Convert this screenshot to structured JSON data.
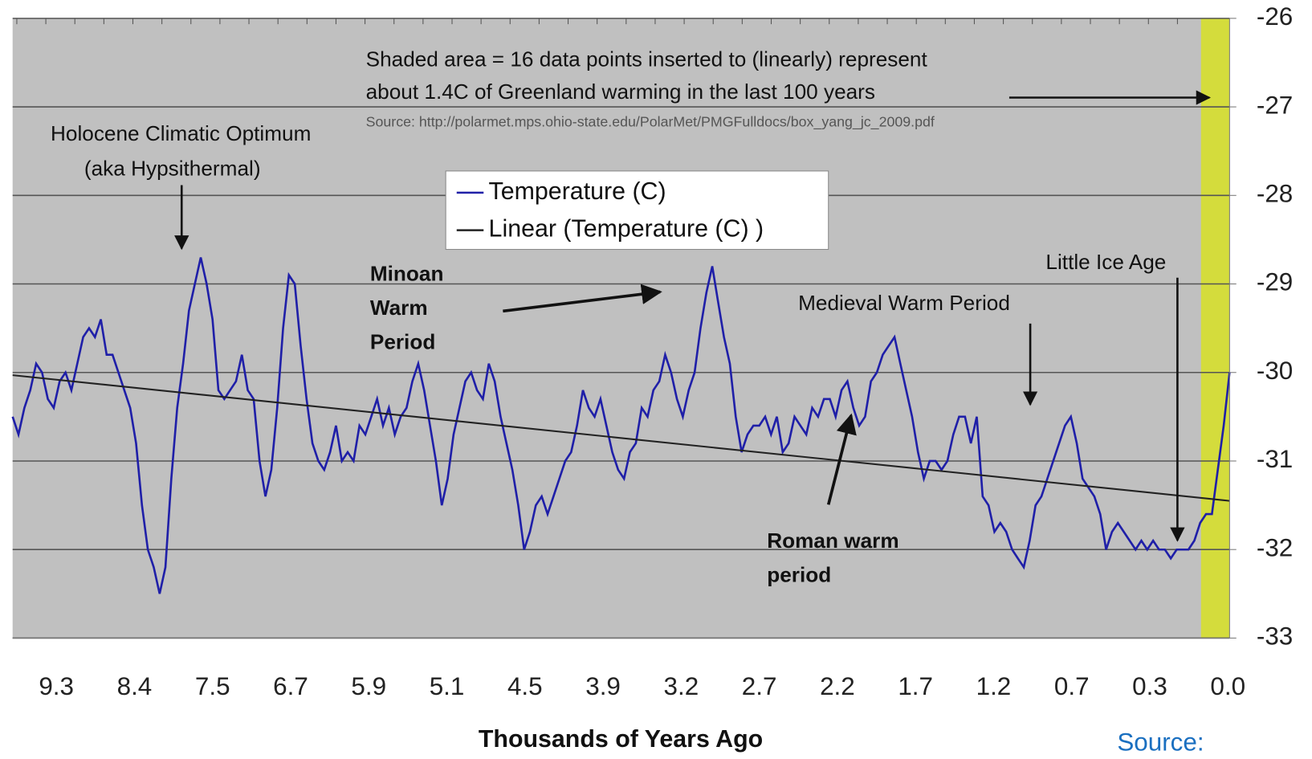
{
  "chart_data": {
    "type": "line",
    "x_labels": [
      "9.3",
      "8.4",
      "7.5",
      "6.7",
      "5.9",
      "5.1",
      "4.5",
      "3.9",
      "3.2",
      "2.7",
      "2.2",
      "1.7",
      "1.2",
      "0.7",
      "0.3",
      "0.0"
    ],
    "x_axis_label": "Thousands of Years Ago",
    "ylim": [
      -33,
      -26
    ],
    "yticks": [
      -33,
      -32,
      -31,
      -30,
      -29,
      -28,
      -27,
      -26
    ],
    "grid": true,
    "series": [
      {
        "name": "Temperature (C)",
        "color": "#1f1fa8",
        "values": [
          -30.5,
          -30.7,
          -30.4,
          -30.2,
          -29.9,
          -30.0,
          -30.3,
          -30.4,
          -30.1,
          -30.0,
          -30.2,
          -29.9,
          -29.6,
          -29.5,
          -29.6,
          -29.4,
          -29.8,
          -29.8,
          -30.0,
          -30.2,
          -30.4,
          -30.8,
          -31.5,
          -32.0,
          -32.2,
          -32.5,
          -32.2,
          -31.2,
          -30.4,
          -29.9,
          -29.3,
          -29.0,
          -28.7,
          -29.0,
          -29.4,
          -30.2,
          -30.3,
          -30.2,
          -30.1,
          -29.8,
          -30.2,
          -30.3,
          -31.0,
          -31.4,
          -31.1,
          -30.4,
          -29.5,
          -28.9,
          -29.0,
          -29.7,
          -30.3,
          -30.8,
          -31.0,
          -31.1,
          -30.9,
          -30.6,
          -31.0,
          -30.9,
          -31.0,
          -30.6,
          -30.7,
          -30.5,
          -30.3,
          -30.6,
          -30.4,
          -30.7,
          -30.5,
          -30.4,
          -30.1,
          -29.9,
          -30.2,
          -30.6,
          -31.0,
          -31.5,
          -31.2,
          -30.7,
          -30.4,
          -30.1,
          -30.0,
          -30.2,
          -30.3,
          -29.9,
          -30.1,
          -30.5,
          -30.8,
          -31.1,
          -31.5,
          -32.0,
          -31.8,
          -31.5,
          -31.4,
          -31.6,
          -31.4,
          -31.2,
          -31.0,
          -30.9,
          -30.6,
          -30.2,
          -30.4,
          -30.5,
          -30.3,
          -30.6,
          -30.9,
          -31.1,
          -31.2,
          -30.9,
          -30.8,
          -30.4,
          -30.5,
          -30.2,
          -30.1,
          -29.8,
          -30.0,
          -30.3,
          -30.5,
          -30.2,
          -30.0,
          -29.5,
          -29.1,
          -28.8,
          -29.2,
          -29.6,
          -29.9,
          -30.5,
          -30.9,
          -30.7,
          -30.6,
          -30.6,
          -30.5,
          -30.7,
          -30.5,
          -30.9,
          -30.8,
          -30.5,
          -30.6,
          -30.7,
          -30.4,
          -30.5,
          -30.3,
          -30.3,
          -30.5,
          -30.2,
          -30.1,
          -30.4,
          -30.6,
          -30.5,
          -30.1,
          -30.0,
          -29.8,
          -29.7,
          -29.6,
          -29.9,
          -30.2,
          -30.5,
          -30.9,
          -31.2,
          -31.0,
          -31.0,
          -31.1,
          -31.0,
          -30.7,
          -30.5,
          -30.5,
          -30.8,
          -30.5,
          -31.4,
          -31.5,
          -31.8,
          -31.7,
          -31.8,
          -32.0,
          -32.1,
          -32.2,
          -31.9,
          -31.5,
          -31.4,
          -31.2,
          -31.0,
          -30.8,
          -30.6,
          -30.5,
          -30.8,
          -31.2,
          -31.3,
          -31.4,
          -31.6,
          -32.0,
          -31.8,
          -31.7,
          -31.8,
          -31.9,
          -32.0,
          -31.9,
          -32.0,
          -31.9,
          -32.0,
          -32.0,
          -32.1,
          -32.0,
          -32.0,
          -32.0,
          -31.9,
          -31.7,
          -31.6,
          -31.6,
          -31.1,
          -30.6,
          -30.0
        ]
      },
      {
        "name": "Linear (Temperature (C) )",
        "color": "#222222",
        "values": [
          -30.03,
          -31.45
        ]
      }
    ],
    "annotations": [
      "Shaded area = 16 data points inserted to (linearly) represent",
      "about 1.4C of Greenland warming in the last 100 years",
      "Source: http://polarmet.mps.ohio-state.edu/PolarMet/PMGFulldocs/box_yang_jc_2009.pdf",
      "Holocene Climatic Optimum",
      "(aka Hypsithermal)",
      "Minoan",
      "Warm",
      "Period",
      "Medieval Warm Period",
      "Little Ice Age",
      "Roman warm",
      "period"
    ],
    "source": "Source:"
  }
}
